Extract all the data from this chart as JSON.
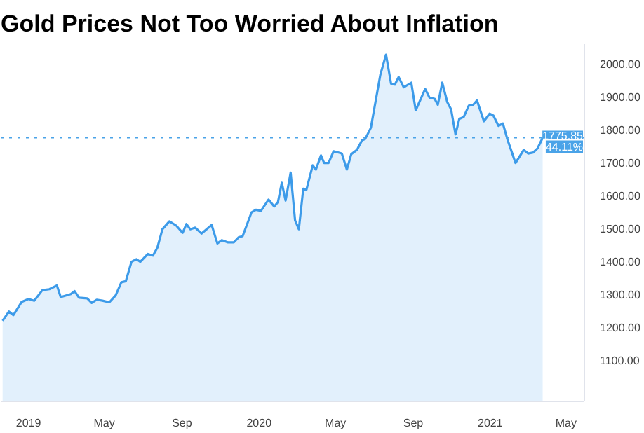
{
  "chart_data": {
    "type": "area",
    "title": "Gold Prices Not Too Worried About Inflation",
    "x": [
      "2018-11-21",
      "2018-12-01",
      "2018-12-08",
      "2018-12-21",
      "2019-01-01",
      "2019-01-10",
      "2019-01-23",
      "2019-02-03",
      "2019-02-15",
      "2019-02-21",
      "2019-03-09",
      "2019-03-15",
      "2019-03-22",
      "2019-04-04",
      "2019-04-11",
      "2019-04-19",
      "2019-04-28",
      "2019-05-09",
      "2019-05-19",
      "2019-05-28",
      "2019-06-04",
      "2019-06-13",
      "2019-06-21",
      "2019-06-27",
      "2019-07-09",
      "2019-07-17",
      "2019-07-24",
      "2019-08-01",
      "2019-08-12",
      "2019-08-23",
      "2019-09-02",
      "2019-09-08",
      "2019-09-14",
      "2019-09-22",
      "2019-10-02",
      "2019-10-18",
      "2019-10-27",
      "2019-11-03",
      "2019-11-13",
      "2019-11-22",
      "2019-11-30",
      "2019-12-06",
      "2019-12-20",
      "2019-12-27",
      "2020-01-04",
      "2020-01-16",
      "2020-01-25",
      "2020-01-31",
      "2020-02-06",
      "2020-02-12",
      "2020-02-20",
      "2020-02-27",
      "2020-03-04",
      "2020-03-11",
      "2020-03-16",
      "2020-03-26",
      "2020-03-31",
      "2020-04-08",
      "2020-04-13",
      "2020-04-20",
      "2020-04-28",
      "2020-05-11",
      "2020-05-19",
      "2020-05-26",
      "2020-06-04",
      "2020-06-12",
      "2020-06-17",
      "2020-06-26",
      "2020-07-11",
      "2020-07-20",
      "2020-07-28",
      "2020-08-03",
      "2020-08-09",
      "2020-08-17",
      "2020-08-29",
      "2020-09-05",
      "2020-09-20",
      "2020-09-27",
      "2020-10-05",
      "2020-10-10",
      "2020-10-17",
      "2020-10-25",
      "2020-10-31",
      "2020-11-07",
      "2020-11-13",
      "2020-11-20",
      "2020-11-28",
      "2020-12-05",
      "2020-12-11",
      "2020-12-22",
      "2020-12-31",
      "2021-01-06",
      "2021-01-14",
      "2021-01-21",
      "2021-01-28",
      "2021-02-10",
      "2021-02-23",
      "2021-03-02",
      "2021-03-10",
      "2021-03-17",
      "2021-03-25"
    ],
    "series": [
      {
        "color": "#3d9be9",
        "values": [
          1220,
          1248,
          1237,
          1277,
          1286,
          1281,
          1313,
          1316,
          1327,
          1292,
          1301,
          1310,
          1290,
          1288,
          1274,
          1284,
          1281,
          1276,
          1297,
          1337,
          1340,
          1399,
          1407,
          1399,
          1423,
          1418,
          1442,
          1498,
          1522,
          1509,
          1487,
          1514,
          1498,
          1503,
          1485,
          1511,
          1455,
          1465,
          1458,
          1458,
          1474,
          1477,
          1549,
          1557,
          1554,
          1588,
          1567,
          1581,
          1639,
          1585,
          1670,
          1525,
          1498,
          1621,
          1618,
          1692,
          1679,
          1722,
          1699,
          1699,
          1735,
          1728,
          1679,
          1726,
          1739,
          1768,
          1772,
          1806,
          1967,
          2028,
          1940,
          1937,
          1960,
          1929,
          1943,
          1859,
          1924,
          1897,
          1894,
          1876,
          1943,
          1884,
          1862,
          1786,
          1833,
          1839,
          1873,
          1876,
          1889,
          1826,
          1849,
          1843,
          1812,
          1819,
          1772,
          1699,
          1739,
          1728,
          1731,
          1744,
          1775.85
        ]
      }
    ],
    "xlim": [
      "2018-11-18",
      "2021-05-30"
    ],
    "xticks": [
      {
        "value": "2019-01-01",
        "label": "2019"
      },
      {
        "value": "2019-05-01",
        "label": "May"
      },
      {
        "value": "2019-09-01",
        "label": "Sep"
      },
      {
        "value": "2020-01-01",
        "label": "2020"
      },
      {
        "value": "2020-05-01",
        "label": "May"
      },
      {
        "value": "2020-09-01",
        "label": "Sep"
      },
      {
        "value": "2021-01-01",
        "label": "2021"
      },
      {
        "value": "2021-05-01",
        "label": "May"
      }
    ],
    "ylim": [
      975,
      2060
    ],
    "yticks": [
      {
        "value": 1100,
        "label": "1100.00"
      },
      {
        "value": 1200,
        "label": "1200.00"
      },
      {
        "value": 1300,
        "label": "1300.00"
      },
      {
        "value": 1400,
        "label": "1400.00"
      },
      {
        "value": 1500,
        "label": "1500.00"
      },
      {
        "value": 1600,
        "label": "1600.00"
      },
      {
        "value": 1700,
        "label": "1700.00"
      },
      {
        "value": 1800,
        "label": "1800.00"
      },
      {
        "value": 1900,
        "label": "1900.00"
      },
      {
        "value": 2000,
        "label": "2000.00"
      }
    ],
    "ref_lines": [
      {
        "axis": "y",
        "value": 1775.85,
        "label": "1775.85",
        "color": "#4aa3e8",
        "line_style": "dotted"
      }
    ],
    "annotations": [
      "44.11%"
    ],
    "grid": false
  }
}
